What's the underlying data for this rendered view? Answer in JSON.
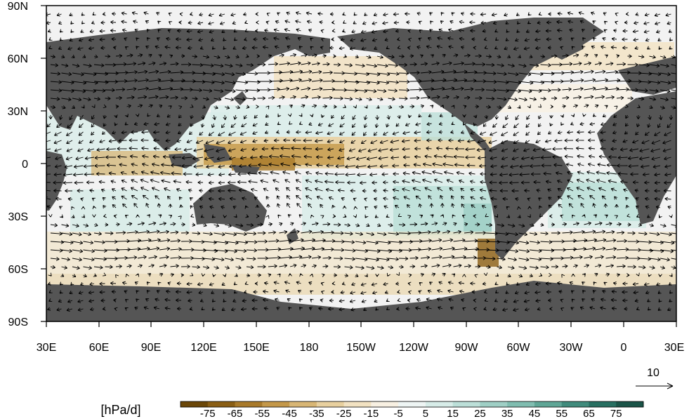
{
  "map": {
    "projection": "cylindrical-equidistant",
    "lon_range": [
      30,
      390
    ],
    "lat_range": [
      -90,
      90
    ],
    "x_tick_labels": [
      "30E",
      "60E",
      "90E",
      "120E",
      "150E",
      "180",
      "150W",
      "120W",
      "90W",
      "60W",
      "30W",
      "0",
      "30E"
    ],
    "y_tick_labels": [
      "90N",
      "60N",
      "30N",
      "0",
      "30S",
      "60S",
      "90S"
    ],
    "land_color": "#555555",
    "background_color": "#f2f2f2"
  },
  "vector_reference": {
    "label": "10"
  },
  "colorbar": {
    "unit_label": "[hPa/d]",
    "tick_labels": [
      "-75",
      "-65",
      "-55",
      "-45",
      "-35",
      "-25",
      "-15",
      "-5",
      "5",
      "15",
      "25",
      "35",
      "45",
      "55",
      "65",
      "75"
    ],
    "colors": [
      "#6b4708",
      "#8a5e14",
      "#a97a2a",
      "#c49849",
      "#d8b675",
      "#e8d09f",
      "#f2e2c2",
      "#f8f0e2",
      "#eef5f4",
      "#d7ece8",
      "#bcdfd8",
      "#9fcfc5",
      "#80bdb0",
      "#5fa696",
      "#408b7c",
      "#276f61",
      "#1a5448"
    ]
  }
}
